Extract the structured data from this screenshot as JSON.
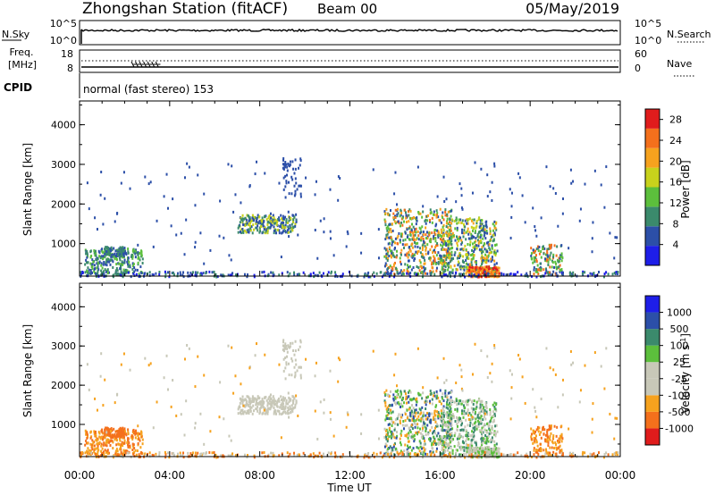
{
  "header": {
    "station": "Zhongshan Station (fitACF)",
    "beam": "Beam 00",
    "date": "05/May/2019"
  },
  "panels": {
    "nsky": {
      "left_label": "N.Sky",
      "left_ticks": [
        "10^5",
        "10^0"
      ],
      "right_label": "N.Search",
      "right_ticks": [
        "10^5",
        "10^0"
      ]
    },
    "freq": {
      "left_label_line1": "Freq.",
      "left_label_line2": "[MHz]",
      "left_ticks": [
        "18",
        "8"
      ],
      "right_label": "Nave",
      "right_ticks": [
        "60",
        "0"
      ]
    },
    "cpid": {
      "label": "CPID",
      "value": "normal (fast stereo) 153"
    }
  },
  "colors": {
    "power_scale": [
      "#1e1ee8",
      "#2c4fa8",
      "#3b8a6c",
      "#5cbf3c",
      "#c8d21c",
      "#f6a21e",
      "#f4701c",
      "#e01c1c"
    ],
    "velocity_scale": [
      "#e01c1c",
      "#f4701c",
      "#f6a21e",
      "#c8c8b8",
      "#c8c8b8",
      "#5cbf3c",
      "#3b8a6c",
      "#2c4fa8",
      "#1e1ee8"
    ]
  },
  "chart_data": [
    {
      "type": "heatmap",
      "name": "power",
      "ylabel": "Slant Range [km]",
      "yticks": [
        "4000",
        "3000",
        "2000",
        "1000"
      ],
      "ylim": [
        180,
        4600
      ],
      "xlim_hours": [
        0,
        24
      ],
      "colorbar_label": "Power [dB]",
      "colorbar_ticks": [
        "28",
        "24",
        "20",
        "16",
        "12",
        "8",
        "4"
      ],
      "colorbar_range": [
        0,
        30
      ]
    },
    {
      "type": "heatmap",
      "name": "velocity",
      "ylabel": "Slant Range [km]",
      "yticks": [
        "4000",
        "3000",
        "2000",
        "1000"
      ],
      "ylim": [
        180,
        4600
      ],
      "xlim_hours": [
        0,
        24
      ],
      "colorbar_label": "Velocity [m s",
      "colorbar_label_sup": "-1",
      "colorbar_label_end": "]",
      "colorbar_ticks": [
        "1000",
        "500",
        "100",
        "25",
        "-25",
        "-100",
        "-500",
        "-1000"
      ]
    }
  ],
  "xaxis": {
    "ticks": [
      "00:00",
      "04:00",
      "08:00",
      "12:00",
      "16:00",
      "20:00",
      "00:00"
    ],
    "label": "Time UT"
  }
}
